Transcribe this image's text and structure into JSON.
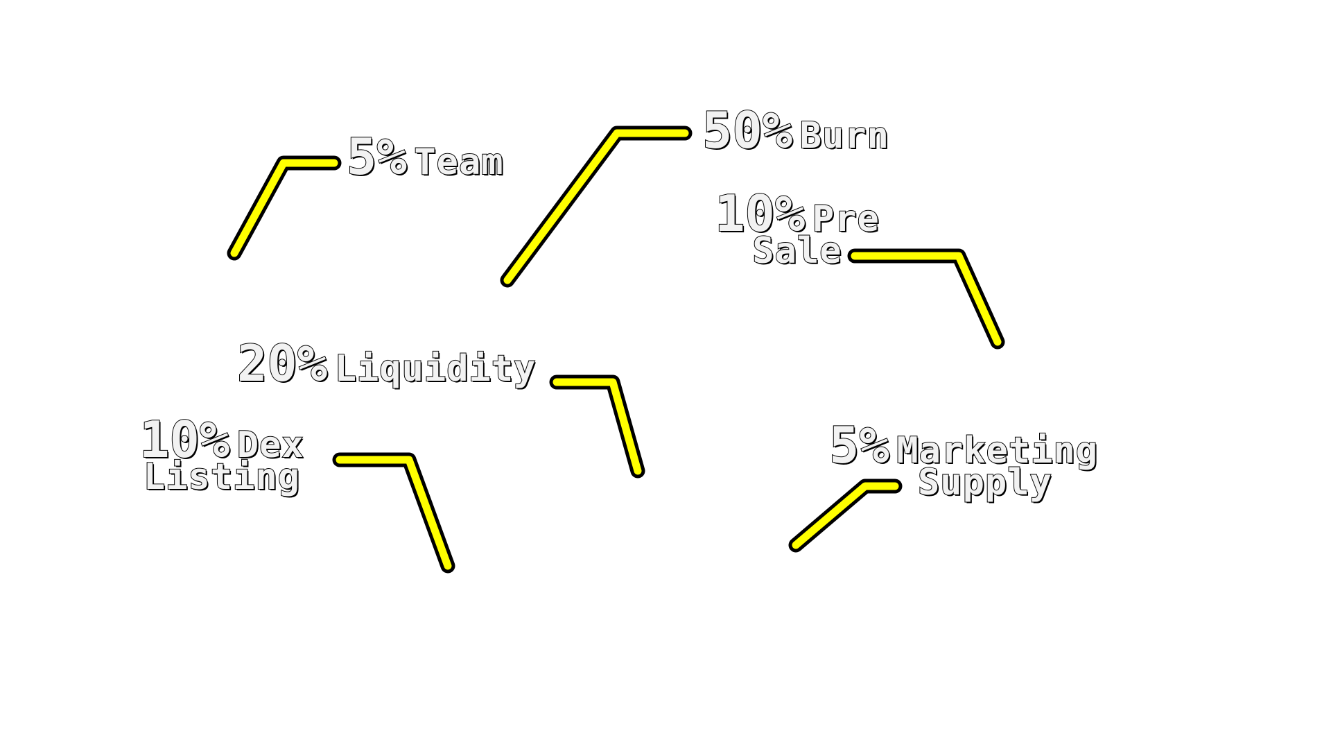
{
  "diagram": {
    "title": "",
    "colors": {
      "leader_fill": "#ffff00",
      "leader_outline": "#000000",
      "label_fill": "#f2f2f2",
      "label_outline": "#000000",
      "background": "#ffffff"
    },
    "allocations": [
      {
        "id": "team",
        "percent": "5%",
        "name": "Team"
      },
      {
        "id": "burn",
        "percent": "50%",
        "name": "Burn"
      },
      {
        "id": "presale",
        "percent": "10%",
        "name": "Pre",
        "name_line2": "Sale"
      },
      {
        "id": "liquidity",
        "percent": "20%",
        "name": "Liquidity"
      },
      {
        "id": "dex",
        "percent": "10%",
        "name": "Dex",
        "name_line2": "Listing"
      },
      {
        "id": "marketing",
        "percent": "5%",
        "name": "Marketing",
        "name_line2": "Supply"
      }
    ]
  }
}
